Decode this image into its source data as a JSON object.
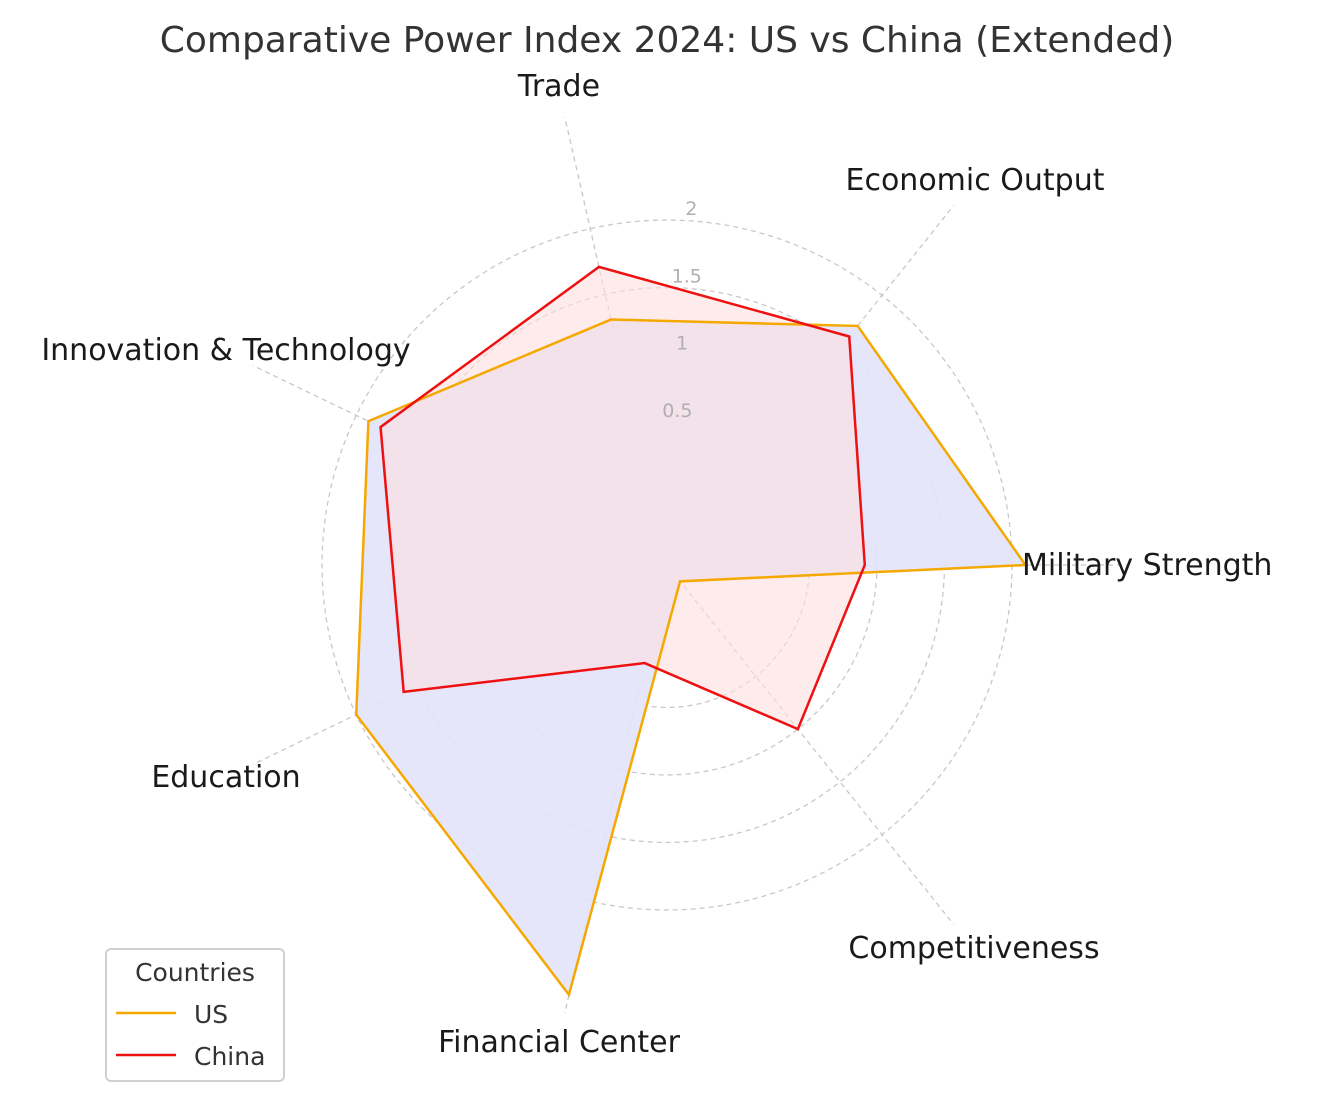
{
  "chart_data": {
    "type": "radar",
    "title": "Comparative Power Index 2024: US vs China (Extended)",
    "categories": [
      "Military Strength",
      "Economic Output",
      "Trade",
      "Innovation & Technology",
      "Education",
      "Financial Center",
      "Competitiveness"
    ],
    "series": [
      {
        "name": "US",
        "values": [
          2.1,
          1.71,
          1.31,
          1.9,
          2.0,
          2.71,
          -0.4
        ],
        "color": "#f5a800",
        "fill": "#e3e3fb"
      },
      {
        "name": "China",
        "values": [
          0.91,
          1.61,
          1.71,
          1.8,
          1.61,
          0.19,
          1.0
        ],
        "color": "#ee1111",
        "fill": "#fde0e0"
      }
    ],
    "radial_ticks": [
      0.5,
      1,
      1.5,
      2
    ],
    "radial_tick_labels": [
      "0.5",
      "1",
      "1.5",
      "2"
    ],
    "rlim": [
      -0.555,
      2.85
    ],
    "grid": true,
    "legend": {
      "title": "Countries",
      "placement": "bottom-left"
    }
  }
}
